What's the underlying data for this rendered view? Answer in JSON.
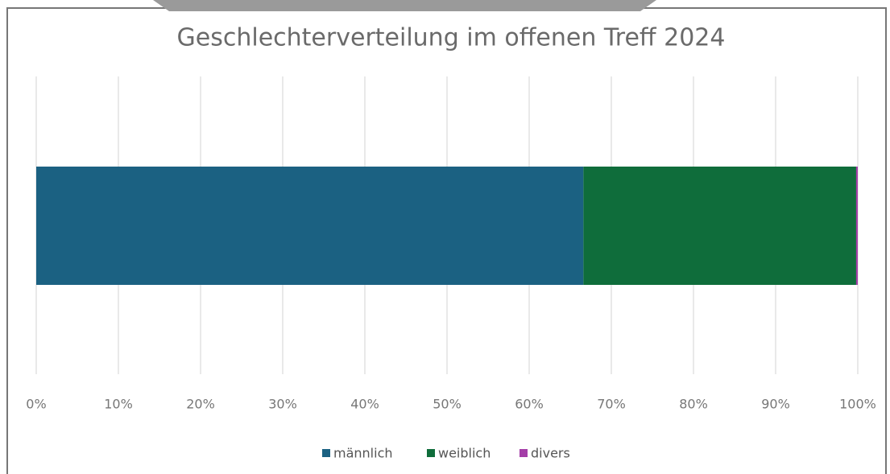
{
  "chart_data": {
    "type": "stacked_bar_horizontal",
    "title": "Geschlechterverteilung im offenen Treff 2024",
    "categories": [
      null
    ],
    "series": [
      {
        "name": "männlich",
        "color": "#1b6182",
        "values": [
          66.6
        ]
      },
      {
        "name": "weiblich",
        "color": "#0f6d3b",
        "values": [
          33.2
        ]
      },
      {
        "name": "divers",
        "color": "#a43ea8",
        "values": [
          0.2
        ]
      }
    ],
    "xlim": [
      0,
      100
    ],
    "xticks": [
      {
        "value": 0,
        "label": "0%"
      },
      {
        "value": 10,
        "label": "10%"
      },
      {
        "value": 20,
        "label": "20%"
      },
      {
        "value": 30,
        "label": "30%"
      },
      {
        "value": 40,
        "label": "40%"
      },
      {
        "value": 50,
        "label": "50%"
      },
      {
        "value": 60,
        "label": "60%"
      },
      {
        "value": 70,
        "label": "70%"
      },
      {
        "value": 80,
        "label": "80%"
      },
      {
        "value": 90,
        "label": "90%"
      },
      {
        "value": 100,
        "label": "100%"
      }
    ],
    "grid": true,
    "legend": "bottom"
  }
}
